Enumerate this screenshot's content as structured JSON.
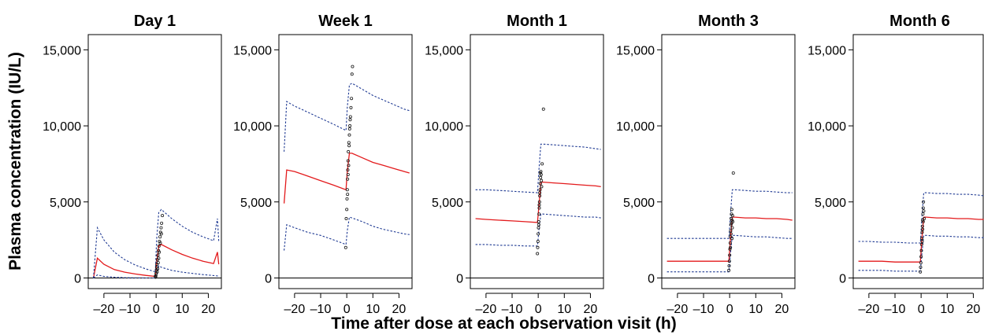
{
  "figure": {
    "ylabel": "Plasma concentration (IU/L)",
    "xlabel": "Time after dose at each observation visit (h)"
  },
  "colors": {
    "median": "#e31a1c",
    "interval": "#1f3a93",
    "points": "#1a1a1a",
    "axis": "#000000"
  },
  "chart_data": [
    {
      "type": "line",
      "title": "Day 1",
      "x_ticks": [
        -20,
        -10,
        0,
        10,
        20
      ],
      "x_tick_labels": [
        "–20",
        "–10",
        "0",
        "10",
        "20"
      ],
      "y_ticks": [
        0,
        5000,
        10000,
        15000
      ],
      "y_tick_labels": [
        "0",
        "5,000",
        "10,000",
        "15,000"
      ],
      "xlim": [
        -26,
        25
      ],
      "ylim": [
        -700,
        16000
      ],
      "grid": false,
      "series": [
        {
          "role": "median",
          "x": [
            -24,
            -22.5,
            -20,
            -16,
            -12,
            -8,
            -4,
            -0.3,
            0.2,
            1,
            2,
            6,
            10,
            14,
            18,
            22,
            23.5,
            24
          ],
          "y": [
            0,
            1300,
            900,
            550,
            380,
            260,
            170,
            100,
            1000,
            2100,
            2200,
            1850,
            1550,
            1300,
            1100,
            950,
            1700,
            900
          ]
        },
        {
          "role": "upper",
          "x": [
            -24,
            -22.5,
            -20,
            -16,
            -12,
            -8,
            -4,
            -0.3,
            0.2,
            1,
            2,
            6,
            10,
            14,
            18,
            22,
            23.5,
            24
          ],
          "y": [
            0,
            3300,
            2500,
            1700,
            1200,
            850,
            600,
            400,
            2500,
            4300,
            4500,
            3900,
            3400,
            3000,
            2700,
            2450,
            3900,
            2400
          ]
        },
        {
          "role": "lower",
          "x": [
            -24,
            -22.5,
            -20,
            -16,
            -12,
            -8,
            -4,
            -0.3,
            0.2,
            1,
            2,
            6,
            10,
            14,
            18,
            22,
            24
          ],
          "y": [
            0,
            200,
            100,
            50,
            20,
            10,
            0,
            0,
            50,
            800,
            700,
            500,
            380,
            300,
            220,
            160,
            120
          ]
        }
      ],
      "points": {
        "x": [
          -0.2,
          -0.1,
          0,
          0.1,
          0.2,
          0.3,
          0.5,
          0.7,
          0.9,
          1.1,
          1.3,
          1.5,
          1.7,
          1.9,
          2.1,
          2.4,
          0.4,
          0.8,
          1.2,
          1.6,
          2.0,
          -0.3,
          0.6,
          1.0
        ],
        "y": [
          50,
          150,
          300,
          500,
          700,
          900,
          1200,
          1500,
          1800,
          2100,
          2400,
          2700,
          3000,
          3300,
          3600,
          4100,
          400,
          1000,
          1700,
          2300,
          2900,
          100,
          600,
          1300
        ]
      }
    },
    {
      "type": "line",
      "title": "Week 1",
      "x_ticks": [
        -20,
        -10,
        0,
        10,
        20
      ],
      "x_tick_labels": [
        "–20",
        "–10",
        "0",
        "10",
        "20"
      ],
      "y_ticks": [
        0,
        5000,
        10000,
        15000
      ],
      "y_tick_labels": [
        "0",
        "5,000",
        "10,000",
        "15,000"
      ],
      "xlim": [
        -26,
        25
      ],
      "ylim": [
        -700,
        16000
      ],
      "grid": false,
      "series": [
        {
          "role": "median",
          "x": [
            -24,
            -23,
            -20,
            -15,
            -10,
            -5,
            -0.3,
            0.2,
            1,
            2,
            6,
            10,
            14,
            18,
            22,
            24
          ],
          "y": [
            4900,
            7100,
            7000,
            6700,
            6400,
            6100,
            5800,
            7000,
            8200,
            8200,
            7900,
            7600,
            7400,
            7200,
            7000,
            6900
          ]
        },
        {
          "role": "upper",
          "x": [
            -24,
            -23,
            -20,
            -15,
            -10,
            -5,
            -0.3,
            0.2,
            1,
            2,
            6,
            10,
            14,
            18,
            22,
            24
          ],
          "y": [
            8300,
            11600,
            11300,
            10900,
            10500,
            10100,
            9700,
            11200,
            12700,
            12800,
            12400,
            12000,
            11700,
            11400,
            11100,
            11000
          ]
        },
        {
          "role": "lower",
          "x": [
            -24,
            -23,
            -20,
            -15,
            -10,
            -5,
            -0.3,
            0.2,
            1,
            2,
            6,
            10,
            14,
            18,
            22,
            24
          ],
          "y": [
            1800,
            3500,
            3300,
            3000,
            2800,
            2500,
            2200,
            3100,
            4000,
            3950,
            3700,
            3400,
            3200,
            3050,
            2900,
            2850
          ]
        }
      ],
      "points": {
        "x": [
          -0.4,
          -0.2,
          0,
          0.1,
          0.2,
          0.3,
          0.4,
          0.5,
          0.6,
          0.8,
          1.0,
          1.2,
          1.4,
          1.6,
          1.8,
          2.0,
          2.2,
          0.3,
          0.5,
          0.7,
          0.9,
          1.1,
          1.3
        ],
        "y": [
          2000,
          3900,
          4500,
          5200,
          5800,
          6500,
          7100,
          7700,
          8300,
          8900,
          9400,
          10000,
          10600,
          11200,
          11800,
          13400,
          13900,
          5500,
          6800,
          7400,
          8700,
          9800,
          10400
        ]
      }
    },
    {
      "type": "line",
      "title": "Month 1",
      "x_ticks": [
        -20,
        -10,
        0,
        10,
        20
      ],
      "x_tick_labels": [
        "–20",
        "–10",
        "0",
        "10",
        "20"
      ],
      "y_ticks": [
        0,
        5000,
        10000,
        15000
      ],
      "y_tick_labels": [
        "0",
        "5,000",
        "10,000",
        "15,000"
      ],
      "xlim": [
        -26,
        25
      ],
      "ylim": [
        -700,
        16000
      ],
      "grid": false,
      "series": [
        {
          "role": "median",
          "x": [
            -24,
            -20,
            -15,
            -10,
            -5,
            -0.3,
            0.3,
            1,
            2,
            6,
            10,
            14,
            18,
            22,
            24
          ],
          "y": [
            3900,
            3850,
            3800,
            3750,
            3700,
            3650,
            4800,
            6300,
            6300,
            6250,
            6200,
            6150,
            6100,
            6050,
            6000
          ]
        },
        {
          "role": "upper",
          "x": [
            -24,
            -20,
            -15,
            -10,
            -5,
            -0.3,
            0.3,
            1,
            2,
            6,
            10,
            14,
            18,
            22,
            24
          ],
          "y": [
            5800,
            5800,
            5750,
            5700,
            5650,
            5600,
            7200,
            8800,
            8800,
            8750,
            8700,
            8650,
            8600,
            8500,
            8450
          ]
        },
        {
          "role": "lower",
          "x": [
            -24,
            -20,
            -15,
            -10,
            -5,
            -0.3,
            0.3,
            1,
            2,
            6,
            10,
            14,
            18,
            22,
            24
          ],
          "y": [
            2200,
            2200,
            2150,
            2150,
            2100,
            2100,
            3200,
            4200,
            4200,
            4150,
            4100,
            4050,
            4000,
            4000,
            3950
          ]
        }
      ],
      "points": {
        "x": [
          -0.3,
          -0.2,
          -0.1,
          0,
          0.1,
          0.2,
          0.3,
          0.4,
          0.5,
          0.6,
          0.7,
          0.8,
          0.9,
          1.0,
          1.1,
          1.2,
          1.3,
          1.5,
          2.0,
          0.2,
          0.4,
          0.6,
          0.8
        ],
        "y": [
          1600,
          2000,
          2400,
          2900,
          3300,
          3700,
          4200,
          4600,
          5000,
          5400,
          5800,
          6200,
          6600,
          7000,
          6800,
          6400,
          6000,
          7500,
          11100,
          3500,
          4800,
          5600,
          6900
        ]
      }
    },
    {
      "type": "line",
      "title": "Month 3",
      "x_ticks": [
        -20,
        -10,
        0,
        10,
        20
      ],
      "x_tick_labels": [
        "–20",
        "–10",
        "0",
        "10",
        "20"
      ],
      "y_ticks": [
        0,
        5000,
        10000,
        15000
      ],
      "y_tick_labels": [
        "0",
        "5,000",
        "10,000",
        "15,000"
      ],
      "xlim": [
        -26,
        25
      ],
      "ylim": [
        -700,
        16000
      ],
      "grid": false,
      "series": [
        {
          "role": "median",
          "x": [
            -24,
            -20,
            -15,
            -10,
            -5,
            -0.3,
            0.3,
            1,
            2,
            6,
            10,
            14,
            18,
            22,
            24
          ],
          "y": [
            1100,
            1100,
            1100,
            1100,
            1100,
            1100,
            2600,
            4000,
            4000,
            3950,
            3950,
            3900,
            3900,
            3850,
            3800
          ]
        },
        {
          "role": "upper",
          "x": [
            -24,
            -20,
            -15,
            -10,
            -5,
            -0.3,
            0.3,
            1,
            2,
            6,
            10,
            14,
            18,
            22,
            24
          ],
          "y": [
            2600,
            2600,
            2600,
            2600,
            2600,
            2600,
            4200,
            5800,
            5800,
            5750,
            5700,
            5700,
            5650,
            5600,
            5600
          ]
        },
        {
          "role": "lower",
          "x": [
            -24,
            -20,
            -15,
            -10,
            -5,
            -0.3,
            0.3,
            1,
            2,
            6,
            10,
            14,
            18,
            22,
            24
          ],
          "y": [
            400,
            400,
            400,
            400,
            400,
            400,
            1600,
            2800,
            2800,
            2750,
            2700,
            2700,
            2650,
            2600,
            2600
          ]
        }
      ],
      "points": {
        "x": [
          -0.3,
          -0.2,
          -0.1,
          0,
          0.1,
          0.2,
          0.3,
          0.4,
          0.5,
          0.6,
          0.7,
          0.8,
          0.9,
          1.0,
          1.2,
          1.4,
          0.5,
          0.3,
          0.7,
          1.1,
          0.9
        ],
        "y": [
          500,
          800,
          1100,
          1500,
          1900,
          2300,
          2700,
          3100,
          3500,
          3900,
          4200,
          4500,
          3800,
          3300,
          3700,
          6900,
          2900,
          2000,
          3600,
          4100,
          2600
        ]
      }
    },
    {
      "type": "line",
      "title": "Month 6",
      "x_ticks": [
        -20,
        -10,
        0,
        10,
        20
      ],
      "x_tick_labels": [
        "–20",
        "–10",
        "0",
        "10",
        "20"
      ],
      "y_ticks": [
        0,
        5000,
        10000,
        15000
      ],
      "y_tick_labels": [
        "0",
        "5,000",
        "10,000",
        "15,000"
      ],
      "xlim": [
        -26,
        25
      ],
      "ylim": [
        -700,
        16000
      ],
      "grid": false,
      "series": [
        {
          "role": "median",
          "x": [
            -24,
            -20,
            -15,
            -10,
            -5,
            -0.3,
            0.3,
            1,
            2,
            6,
            10,
            14,
            18,
            22,
            24
          ],
          "y": [
            1100,
            1100,
            1100,
            1050,
            1050,
            1050,
            2600,
            4000,
            4000,
            3950,
            3950,
            3900,
            3900,
            3850,
            3850
          ]
        },
        {
          "role": "upper",
          "x": [
            -24,
            -20,
            -15,
            -10,
            -5,
            -0.3,
            0.3,
            1,
            2,
            6,
            10,
            14,
            18,
            22,
            24
          ],
          "y": [
            2400,
            2400,
            2350,
            2350,
            2300,
            2300,
            4000,
            5600,
            5600,
            5550,
            5550,
            5500,
            5500,
            5450,
            5400
          ]
        },
        {
          "role": "lower",
          "x": [
            -24,
            -20,
            -15,
            -10,
            -5,
            -0.3,
            0.3,
            1,
            2,
            6,
            10,
            14,
            18,
            22,
            24
          ],
          "y": [
            500,
            500,
            500,
            450,
            450,
            450,
            1600,
            2800,
            2800,
            2750,
            2750,
            2700,
            2700,
            2650,
            2650
          ]
        }
      ],
      "points": {
        "x": [
          -0.3,
          -0.2,
          -0.1,
          0,
          0.1,
          0.2,
          0.3,
          0.4,
          0.5,
          0.6,
          0.7,
          0.8,
          0.9,
          1.0,
          1.2,
          0.4,
          0.6,
          0.8
        ],
        "y": [
          400,
          700,
          1000,
          1400,
          1800,
          2200,
          2600,
          3000,
          3400,
          3800,
          4200,
          4600,
          5000,
          4400,
          3900,
          2400,
          3200,
          3700
        ]
      }
    }
  ]
}
